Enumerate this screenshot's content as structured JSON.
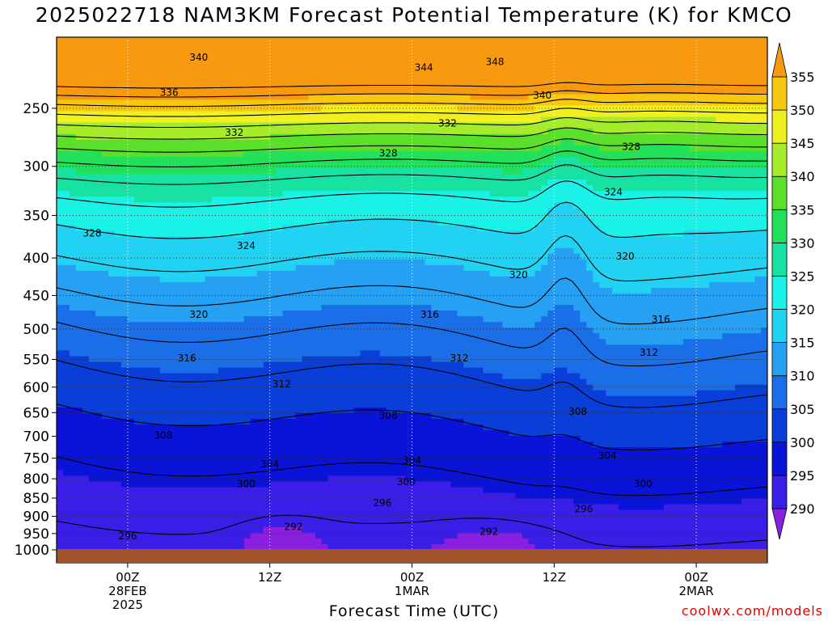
{
  "chart_data": {
    "type": "heatmap",
    "title": "2025022718 NAM3KM Forecast Potential Temperature (K) for KMCO",
    "xlabel": "Forecast Time (UTC)",
    "ylabel": "",
    "credit": "coolwx.com/models",
    "x_ticks": [
      {
        "label": "00Z",
        "sub1": "28FEB",
        "sub2": "2025",
        "hour": 6
      },
      {
        "label": "12Z",
        "sub1": "",
        "sub2": "",
        "hour": 18
      },
      {
        "label": "00Z",
        "sub1": "1MAR",
        "sub2": "",
        "hour": 30
      },
      {
        "label": "12Z",
        "sub1": "",
        "sub2": "",
        "hour": 42
      },
      {
        "label": "00Z",
        "sub1": "2MAR",
        "sub2": "",
        "hour": 54
      }
    ],
    "x_range_hours": [
      0,
      60
    ],
    "y_pressure_levels": [
      250,
      300,
      350,
      400,
      450,
      500,
      550,
      600,
      650,
      700,
      750,
      800,
      850,
      900,
      950,
      1000
    ],
    "y_range_hpa": [
      200,
      1000
    ],
    "colorbar": {
      "levels": [
        290,
        295,
        300,
        305,
        310,
        315,
        320,
        325,
        330,
        335,
        340,
        345,
        350,
        355
      ],
      "colors": [
        "#8a1fe0",
        "#3a1ee8",
        "#0a14d8",
        "#0a3ed8",
        "#1a6ee8",
        "#26a0f2",
        "#22d2f2",
        "#1af2e8",
        "#18e2a2",
        "#22e05a",
        "#5ae02a",
        "#a6ec2a",
        "#f0f020",
        "#f8c810",
        "#f89a10"
      ]
    },
    "contour_interval": 4,
    "contour_labels": [
      {
        "value": 340,
        "hour": 12,
        "hpa": 213
      },
      {
        "value": 344,
        "hour": 31,
        "hpa": 220
      },
      {
        "value": 348,
        "hour": 37,
        "hpa": 216
      },
      {
        "value": 336,
        "hour": 9.5,
        "hpa": 238
      },
      {
        "value": 340,
        "hour": 41,
        "hpa": 240
      },
      {
        "value": 332,
        "hour": 15,
        "hpa": 270
      },
      {
        "value": 332,
        "hour": 33,
        "hpa": 262
      },
      {
        "value": 328,
        "hour": 28,
        "hpa": 288
      },
      {
        "value": 328,
        "hour": 48.5,
        "hpa": 282
      },
      {
        "value": 324,
        "hour": 47,
        "hpa": 325
      },
      {
        "value": 328,
        "hour": 3,
        "hpa": 370
      },
      {
        "value": 324,
        "hour": 16,
        "hpa": 385
      },
      {
        "value": 320,
        "hour": 39,
        "hpa": 422
      },
      {
        "value": 320,
        "hour": 48,
        "hpa": 398
      },
      {
        "value": 320,
        "hour": 12,
        "hpa": 478
      },
      {
        "value": 316,
        "hour": 31.5,
        "hpa": 478
      },
      {
        "value": 316,
        "hour": 51,
        "hpa": 485
      },
      {
        "value": 316,
        "hour": 11,
        "hpa": 548
      },
      {
        "value": 312,
        "hour": 34,
        "hpa": 548
      },
      {
        "value": 312,
        "hour": 50,
        "hpa": 538
      },
      {
        "value": 312,
        "hour": 19,
        "hpa": 594
      },
      {
        "value": 308,
        "hour": 28,
        "hpa": 656
      },
      {
        "value": 308,
        "hour": 44,
        "hpa": 648
      },
      {
        "value": 308,
        "hour": 9,
        "hpa": 698
      },
      {
        "value": 304,
        "hour": 30,
        "hpa": 755
      },
      {
        "value": 304,
        "hour": 46.5,
        "hpa": 744
      },
      {
        "value": 304,
        "hour": 18,
        "hpa": 764
      },
      {
        "value": 300,
        "hour": 16,
        "hpa": 813
      },
      {
        "value": 300,
        "hour": 29.5,
        "hpa": 808
      },
      {
        "value": 300,
        "hour": 49.5,
        "hpa": 813
      },
      {
        "value": 296,
        "hour": 27.5,
        "hpa": 863
      },
      {
        "value": 296,
        "hour": 44.5,
        "hpa": 880
      },
      {
        "value": 296,
        "hour": 6,
        "hpa": 958
      },
      {
        "value": 292,
        "hour": 20,
        "hpa": 930
      },
      {
        "value": 292,
        "hour": 36.5,
        "hpa": 945
      }
    ],
    "grid": true,
    "legend": "colorbar-right"
  }
}
